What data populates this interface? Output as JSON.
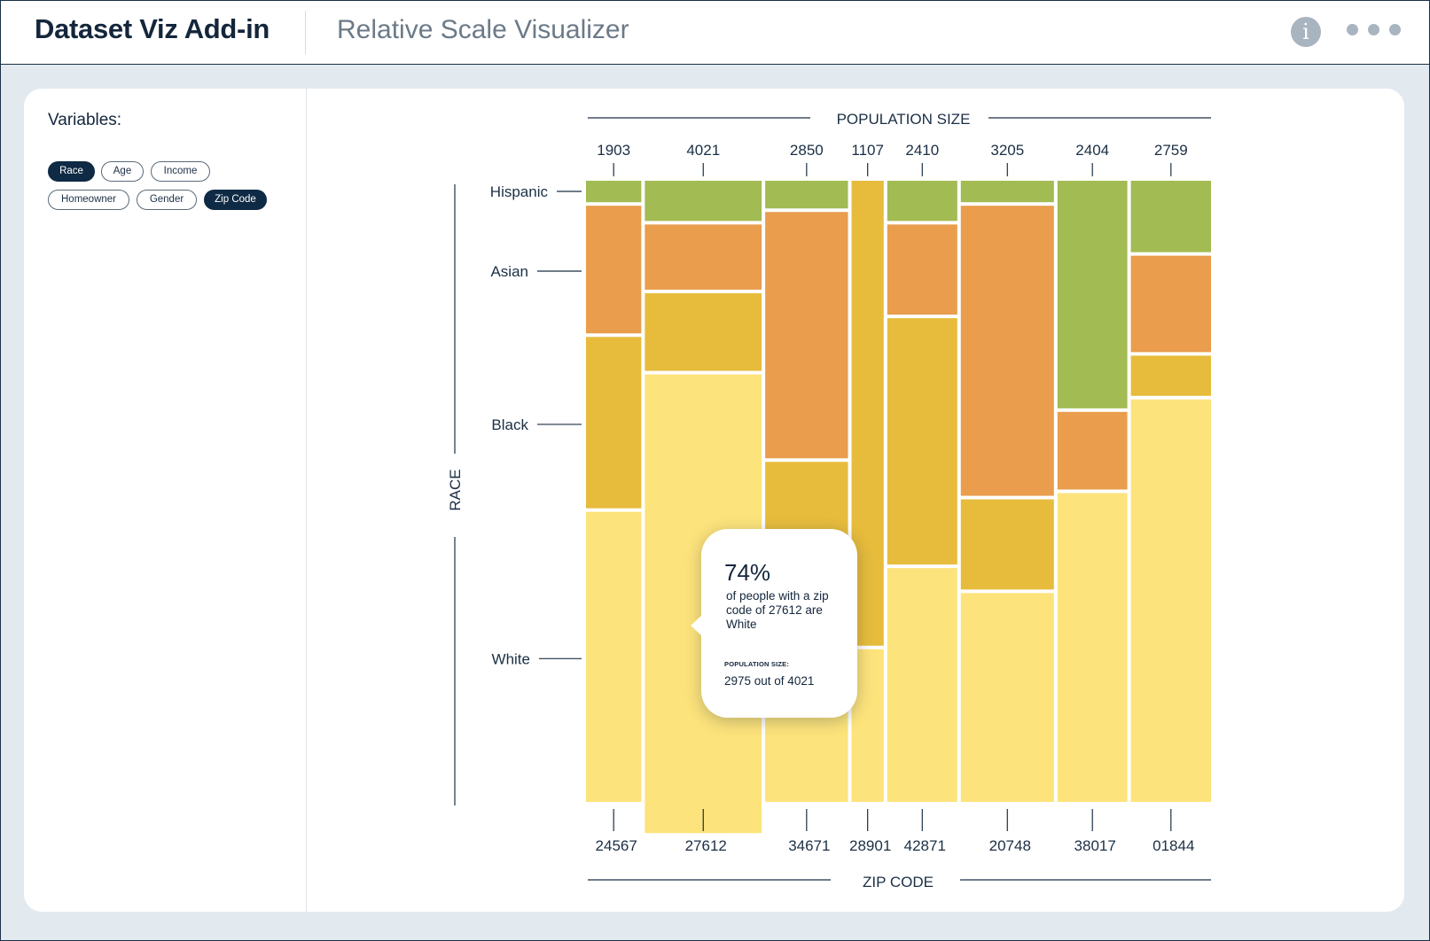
{
  "app": {
    "title": "Dataset Viz Add-in",
    "subtitle": "Relative Scale Visualizer",
    "info_icon": "i"
  },
  "sidebar": {
    "variables_label": "Variables:",
    "chips": [
      {
        "label": "Race",
        "active": true
      },
      {
        "label": "Age",
        "active": false
      },
      {
        "label": "Income",
        "active": false
      },
      {
        "label": "Homeowner",
        "active": false
      },
      {
        "label": "Gender",
        "active": false
      },
      {
        "label": "Zip Code",
        "active": true
      }
    ]
  },
  "tooltip": {
    "percent": "74%",
    "description": "of people with a zip code of 27612 are White",
    "pop_label": "POPULATION SIZE:",
    "pop_value": "2975 out of 4021"
  },
  "colors": {
    "Hispanic": "#a2bb52",
    "Asian": "#e99d4d",
    "Black": "#e7bc3c",
    "White": "#fde37b"
  },
  "chart_data": {
    "type": "mosaic",
    "top_axis_label": "POPULATION SIZE",
    "bottom_axis_label": "ZIP CODE",
    "y_axis_label": "RACE",
    "categories": [
      "Hispanic",
      "Asian",
      "Black",
      "White"
    ],
    "columns": [
      {
        "zip": "24567",
        "population": "1903",
        "shares": [
          0.04,
          0.21,
          0.28,
          0.47
        ]
      },
      {
        "zip": "27612",
        "population": "4021",
        "shares": [
          0.07,
          0.11,
          0.13,
          0.74
        ]
      },
      {
        "zip": "34671",
        "population": "2850",
        "shares": [
          0.05,
          0.4,
          0.35,
          0.2
        ]
      },
      {
        "zip": "28901",
        "population": "1107",
        "shares": [
          0.0,
          0.0,
          0.75,
          0.25
        ]
      },
      {
        "zip": "42871",
        "population": "2410",
        "shares": [
          0.07,
          0.15,
          0.4,
          0.38
        ]
      },
      {
        "zip": "20748",
        "population": "3205",
        "shares": [
          0.04,
          0.47,
          0.15,
          0.34
        ]
      },
      {
        "zip": "38017",
        "population": "2404",
        "shares": [
          0.37,
          0.13,
          0.0,
          0.5
        ]
      },
      {
        "zip": "01844",
        "population": "2759",
        "shares": [
          0.12,
          0.16,
          0.07,
          0.65
        ]
      }
    ]
  }
}
